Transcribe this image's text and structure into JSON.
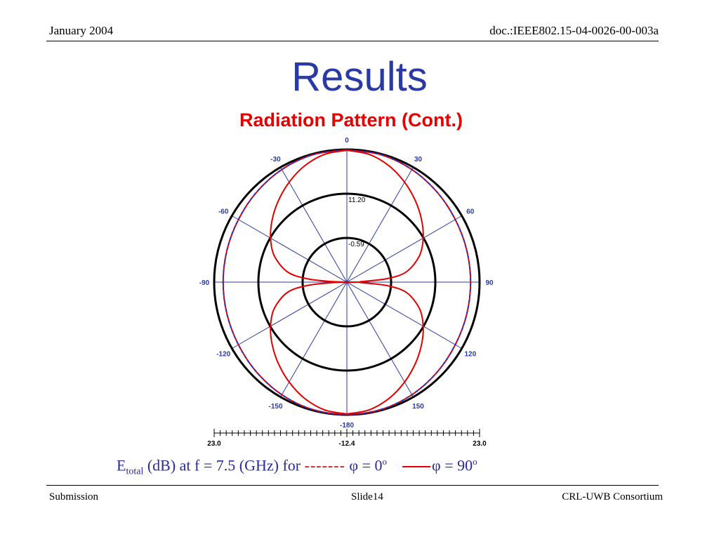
{
  "header": {
    "date": "January 2004",
    "doc": "doc.:IEEE802.15-04-0026-00-003a"
  },
  "slide": {
    "title": "Results",
    "subtitle": "Radiation Pattern (Cont.)"
  },
  "caption": {
    "e_main": "E",
    "e_sub": "total",
    "text": " (dB) at f = 7.5 (GHz) for ",
    "dashes": "-------",
    "phi0": " φ = 0",
    "phi90": "φ = 90",
    "deg": "o"
  },
  "footer": {
    "left": "Submission",
    "center": "Slide14",
    "right": "CRL-UWB Consortium"
  },
  "colors": {
    "title": "#2a3aa4",
    "subtitle": "#e30000",
    "pattern": "#e30000",
    "pattern_dashed": "#2233cc",
    "spokes": "#2a3aa4",
    "labels": "#2a3aa4"
  },
  "chart_data": {
    "type": "polar",
    "angle_labels": [
      {
        "deg": 0,
        "text": "0"
      },
      {
        "deg": 30,
        "text": "30"
      },
      {
        "deg": 60,
        "text": "60"
      },
      {
        "deg": 90,
        "text": "90"
      },
      {
        "deg": 120,
        "text": "120"
      },
      {
        "deg": 150,
        "text": "150"
      },
      {
        "deg": 180,
        "text": "-180"
      },
      {
        "deg": -150,
        "text": "-150"
      },
      {
        "deg": -120,
        "text": "-120"
      },
      {
        "deg": -90,
        "text": "-90"
      },
      {
        "deg": -60,
        "text": "-60"
      },
      {
        "deg": -30,
        "text": "-30"
      }
    ],
    "radial_range": [
      -12.4,
      23.0
    ],
    "ring_labels": [
      {
        "value": 11.2,
        "text": "11.20"
      },
      {
        "value": -0.59,
        "text": "-0.59"
      }
    ],
    "scale_labels": [
      "23.0",
      "-12.4",
      "23.0"
    ],
    "series": [
      {
        "style": "dashed",
        "points": [
          [
            0,
            22.9
          ],
          [
            15,
            22.8
          ],
          [
            30,
            22.3
          ],
          [
            45,
            21.6
          ],
          [
            60,
            21.0
          ],
          [
            75,
            20.7
          ],
          [
            90,
            20.6
          ],
          [
            105,
            20.7
          ],
          [
            120,
            21.0
          ],
          [
            135,
            21.6
          ],
          [
            150,
            22.3
          ],
          [
            165,
            22.8
          ],
          [
            180,
            22.9
          ]
        ]
      },
      {
        "style": "solid",
        "points": [
          [
            0,
            22.8
          ],
          [
            10,
            22.2
          ],
          [
            20,
            20.6
          ],
          [
            30,
            18.4
          ],
          [
            40,
            16.0
          ],
          [
            50,
            13.6
          ],
          [
            60,
            11.1
          ],
          [
            70,
            8.2
          ],
          [
            80,
            3.8
          ],
          [
            85,
            -1.5
          ],
          [
            88,
            -8.5
          ],
          [
            90,
            -9.0
          ]
        ]
      }
    ]
  }
}
